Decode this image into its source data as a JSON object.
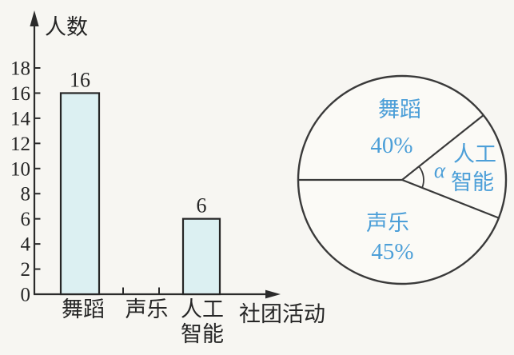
{
  "figure": {
    "description_colors": {
      "paper_bg": "#f7f6f2",
      "ink": "#2b2b2b",
      "bar_fill": "#dcf0f2",
      "pie_label_blue": "#4c9fd8",
      "pie_outline": "#3a3a3a"
    }
  },
  "chart_data": [
    {
      "type": "bar",
      "title": "",
      "ylabel": "人数",
      "xlabel": "社团活动",
      "categories": [
        "舞蹈",
        "声乐",
        "人工智能"
      ],
      "category_lines": [
        [
          "舞蹈"
        ],
        [
          "声乐"
        ],
        [
          "人工",
          "智能"
        ]
      ],
      "values": [
        16,
        null,
        6
      ],
      "y_ticks": [
        0,
        2,
        4,
        6,
        8,
        10,
        12,
        14,
        16,
        18
      ],
      "ylim": [
        0,
        19
      ],
      "grid": false,
      "legend": "none",
      "bar_value_labels": [
        "16",
        "",
        "6"
      ]
    },
    {
      "type": "pie",
      "title": "",
      "legend": "none",
      "slices": [
        {
          "label": "舞蹈",
          "percent": 40,
          "percent_label": "40%"
        },
        {
          "label": "声乐",
          "percent": 45,
          "percent_label": "45%"
        },
        {
          "label": "人工智能",
          "label_line1": "人工",
          "label_line2": "智能",
          "angle_label": "α"
        }
      ]
    }
  ]
}
